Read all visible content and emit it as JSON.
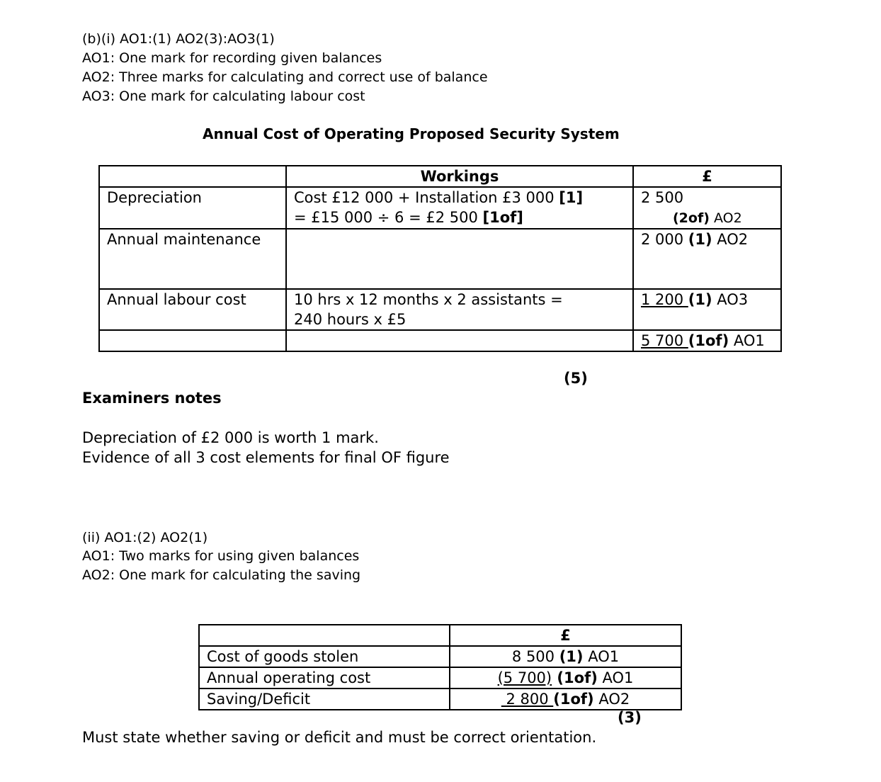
{
  "part_i": {
    "heading": "(b)(i) AO1:(1) AO2(3):AO3(1)",
    "lines": [
      "AO1: One mark for recording given balances",
      "AO2:  Three marks for calculating and correct use of balance",
      "AO3: One mark for calculating labour cost"
    ],
    "table_title": "Annual Cost of Operating Proposed Security System",
    "table": {
      "headers": [
        "",
        "Workings",
        "£"
      ],
      "rows": [
        {
          "label": "Depreciation",
          "work1": "Cost £12 000 + Installation £3 000 ",
          "work1_mark": "[1]",
          "work2": "= £15 000 ÷ 6 = £2 500 ",
          "work2_mark": "[1of]",
          "value": "2 500",
          "value_mark": "(2of)",
          "value_ao": " AO2"
        },
        {
          "label": "Annual maintenance",
          "value": "2 000 ",
          "value_mark": "(1)",
          "value_ao": " AO2"
        },
        {
          "label": "Annual labour cost",
          "work1": "10 hrs x 12 months x 2 assistants =",
          "work2": "240 hours x £5",
          "value": "1 200 ",
          "value_mark": "(1)",
          "value_ao": " AO3"
        },
        {
          "label": "",
          "value": "5 700 ",
          "value_mark": "(1of)",
          "value_ao": " AO1"
        }
      ]
    },
    "marks": "(5)"
  },
  "examiners_notes": {
    "heading": "Examiners notes",
    "lines": [
      "Depreciation of £2 000 is worth 1 mark.",
      "Evidence of all 3 cost elements for final OF figure"
    ]
  },
  "part_ii": {
    "heading": "(ii) AO1:(2) AO2(1)",
    "lines": [
      "AO1: Two marks for using given balances",
      "AO2:  One mark for calculating the saving"
    ],
    "table": {
      "headers": [
        "",
        "£"
      ],
      "rows": [
        {
          "label": "Cost of goods stolen",
          "value": "8 500 ",
          "value_mark": "(1)",
          "value_ao": " AO1"
        },
        {
          "label": "Annual operating cost",
          "value": "(5 700)",
          "value_mark": " (1of)",
          "value_ao": " AO1"
        },
        {
          "label": "Saving/Deficit",
          "value": " 2 800 ",
          "value_mark": "(1of)",
          "value_ao": " AO2"
        }
      ]
    },
    "marks": "(3)",
    "note": "Must state whether saving or deficit and must be correct orientation."
  }
}
